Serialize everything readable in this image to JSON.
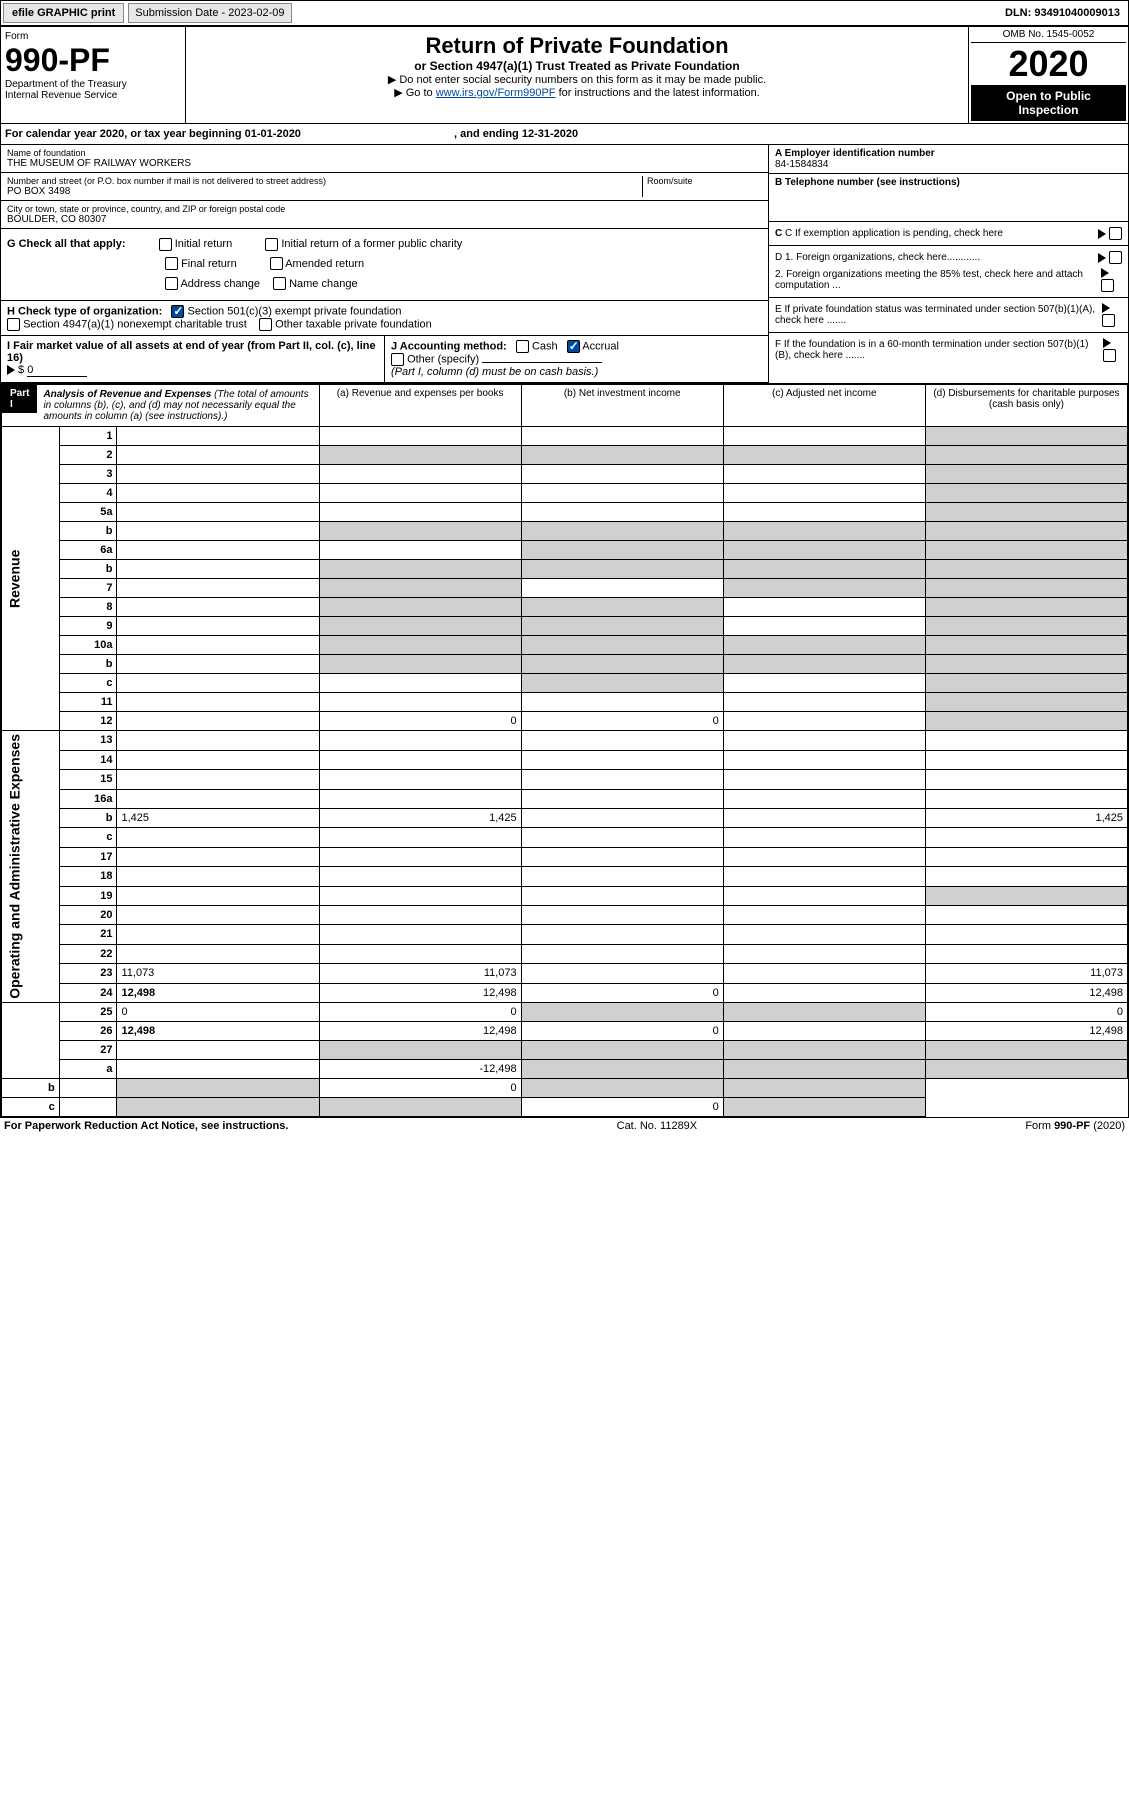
{
  "top": {
    "efile": "efile GRAPHIC print",
    "submission_label": "Submission Date - 2023-02-09",
    "dln": "DLN: 93491040009013"
  },
  "form": {
    "form_word": "Form",
    "number": "990-PF",
    "dept1": "Department of the Treasury",
    "dept2": "Internal Revenue Service"
  },
  "title": {
    "main": "Return of Private Foundation",
    "sub": "or Section 4947(a)(1) Trust Treated as Private Foundation",
    "instr1": "▶ Do not enter social security numbers on this form as it may be made public.",
    "instr2_pre": "▶ Go to ",
    "instr2_link": "www.irs.gov/Form990PF",
    "instr2_post": " for instructions and the latest information."
  },
  "yearbox": {
    "omb": "OMB No. 1545-0052",
    "year": "2020",
    "open": "Open to Public Inspection"
  },
  "calyear": {
    "text_pre": "For calendar year 2020, or tax year beginning ",
    "begin": "01-01-2020",
    "mid": " , and ending ",
    "end": "12-31-2020"
  },
  "info": {
    "name_label": "Name of foundation",
    "name": "THE MUSEUM OF RAILWAY WORKERS",
    "addr_label": "Number and street (or P.O. box number if mail is not delivered to street address)",
    "room_label": "Room/suite",
    "addr": "PO BOX 3498",
    "city_label": "City or town, state or province, country, and ZIP or foreign postal code",
    "city": "BOULDER, CO  80307",
    "a_label": "A Employer identification number",
    "ein": "84-1584834",
    "b_label": "B Telephone number (see instructions)",
    "c_label": "C If exemption application is pending, check here",
    "d1": "D 1. Foreign organizations, check here............",
    "d2": "2. Foreign organizations meeting the 85% test, check here and attach computation ...",
    "e": "E  If private foundation status was terminated under section 507(b)(1)(A), check here .......",
    "f": "F  If the foundation is in a 60-month termination under section 507(b)(1)(B), check here .......",
    "g_label": "G Check all that apply:",
    "g_opts": [
      "Initial return",
      "Initial return of a former public charity",
      "Final return",
      "Amended return",
      "Address change",
      "Name change"
    ],
    "h_label": "H Check type of organization:",
    "h_501": "Section 501(c)(3) exempt private foundation",
    "h_4947": "Section 4947(a)(1) nonexempt charitable trust",
    "h_other": "Other taxable private foundation",
    "i_label": "I Fair market value of all assets at end of year (from Part II, col. (c), line 16)",
    "i_val": "0",
    "j_label": "J Accounting method:",
    "j_cash": "Cash",
    "j_accrual": "Accrual",
    "j_other": "Other (specify)",
    "j_note": "(Part I, column (d) must be on cash basis.)"
  },
  "part1": {
    "label": "Part I",
    "title": "Analysis of Revenue and Expenses",
    "note": "(The total of amounts in columns (b), (c), and (d) may not necessarily equal the amounts in column (a) (see instructions).)",
    "cols": {
      "a": "(a) Revenue and expenses per books",
      "b": "(b) Net investment income",
      "c": "(c) Adjusted net income",
      "d": "(d) Disbursements for charitable purposes (cash basis only)"
    }
  },
  "sections": {
    "revenue": "Revenue",
    "opex": "Operating and Administrative Expenses"
  },
  "rows": [
    {
      "n": "1",
      "d": "",
      "a": "",
      "b": "",
      "c": "",
      "shade": [
        "d"
      ]
    },
    {
      "n": "2",
      "d": "",
      "sub": true,
      "a": "",
      "b": "",
      "c": "",
      "shade": [
        "a",
        "b",
        "c",
        "d"
      ]
    },
    {
      "n": "3",
      "d": "",
      "a": "",
      "b": "",
      "c": "",
      "shade": [
        "d"
      ]
    },
    {
      "n": "4",
      "d": "",
      "a": "",
      "b": "",
      "c": "",
      "shade": [
        "d"
      ]
    },
    {
      "n": "5a",
      "d": "",
      "a": "",
      "b": "",
      "c": "",
      "shade": [
        "d"
      ]
    },
    {
      "n": "b",
      "d": "",
      "a": "",
      "b": "",
      "c": "",
      "shade": [
        "a",
        "b",
        "c",
        "d"
      ]
    },
    {
      "n": "6a",
      "d": "",
      "a": "",
      "b": "",
      "c": "",
      "shade": [
        "b",
        "c",
        "d"
      ]
    },
    {
      "n": "b",
      "d": "",
      "a": "",
      "b": "",
      "c": "",
      "shade": [
        "a",
        "b",
        "c",
        "d"
      ]
    },
    {
      "n": "7",
      "d": "",
      "a": "",
      "b": "",
      "c": "",
      "shade": [
        "a",
        "c",
        "d"
      ]
    },
    {
      "n": "8",
      "d": "",
      "a": "",
      "b": "",
      "c": "",
      "shade": [
        "a",
        "b",
        "d"
      ]
    },
    {
      "n": "9",
      "d": "",
      "a": "",
      "b": "",
      "c": "",
      "shade": [
        "a",
        "b",
        "d"
      ]
    },
    {
      "n": "10a",
      "d": "",
      "a": "",
      "b": "",
      "c": "",
      "shade": [
        "a",
        "b",
        "c",
        "d"
      ]
    },
    {
      "n": "b",
      "d": "",
      "a": "",
      "b": "",
      "c": "",
      "shade": [
        "a",
        "b",
        "c",
        "d"
      ]
    },
    {
      "n": "c",
      "d": "",
      "a": "",
      "b": "",
      "c": "",
      "shade": [
        "b",
        "d"
      ]
    },
    {
      "n": "11",
      "d": "",
      "a": "",
      "b": "",
      "c": "",
      "shade": [
        "d"
      ]
    },
    {
      "n": "12",
      "d": "",
      "bold": true,
      "a": "0",
      "b": "0",
      "c": "",
      "shade": [
        "d"
      ]
    },
    {
      "n": "13",
      "d": "",
      "a": "",
      "b": "",
      "c": ""
    },
    {
      "n": "14",
      "d": "",
      "a": "",
      "b": "",
      "c": ""
    },
    {
      "n": "15",
      "d": "",
      "a": "",
      "b": "",
      "c": ""
    },
    {
      "n": "16a",
      "d": "",
      "a": "",
      "b": "",
      "c": ""
    },
    {
      "n": "b",
      "d": "1,425",
      "a": "1,425",
      "b": "",
      "c": ""
    },
    {
      "n": "c",
      "d": "",
      "a": "",
      "b": "",
      "c": ""
    },
    {
      "n": "17",
      "d": "",
      "a": "",
      "b": "",
      "c": ""
    },
    {
      "n": "18",
      "d": "",
      "a": "",
      "b": "",
      "c": ""
    },
    {
      "n": "19",
      "d": "",
      "a": "",
      "b": "",
      "c": "",
      "shade": [
        "d"
      ]
    },
    {
      "n": "20",
      "d": "",
      "a": "",
      "b": "",
      "c": ""
    },
    {
      "n": "21",
      "d": "",
      "a": "",
      "b": "",
      "c": ""
    },
    {
      "n": "22",
      "d": "",
      "a": "",
      "b": "",
      "c": ""
    },
    {
      "n": "23",
      "d": "11,073",
      "a": "11,073",
      "b": "",
      "c": ""
    },
    {
      "n": "24",
      "d": "12,498",
      "bold": true,
      "a": "12,498",
      "b": "0",
      "c": ""
    },
    {
      "n": "25",
      "d": "0",
      "a": "0",
      "b": "",
      "c": "",
      "shade": [
        "b",
        "c"
      ]
    },
    {
      "n": "26",
      "d": "12,498",
      "bold": true,
      "a": "12,498",
      "b": "0",
      "c": ""
    },
    {
      "n": "27",
      "d": "",
      "a": "",
      "b": "",
      "c": "",
      "shade": [
        "a",
        "b",
        "c",
        "d"
      ]
    },
    {
      "n": "a",
      "d": "",
      "bold": true,
      "a": "-12,498",
      "b": "",
      "c": "",
      "shade": [
        "b",
        "c",
        "d"
      ]
    },
    {
      "n": "b",
      "d": "",
      "bold": true,
      "a": "",
      "b": "0",
      "c": "",
      "shade": [
        "a",
        "c",
        "d"
      ]
    },
    {
      "n": "c",
      "d": "",
      "bold": true,
      "a": "",
      "b": "",
      "c": "0",
      "shade": [
        "a",
        "b",
        "d"
      ]
    }
  ],
  "footer": {
    "left": "For Paperwork Reduction Act Notice, see instructions.",
    "mid": "Cat. No. 11289X",
    "right": "Form 990-PF (2020)"
  }
}
